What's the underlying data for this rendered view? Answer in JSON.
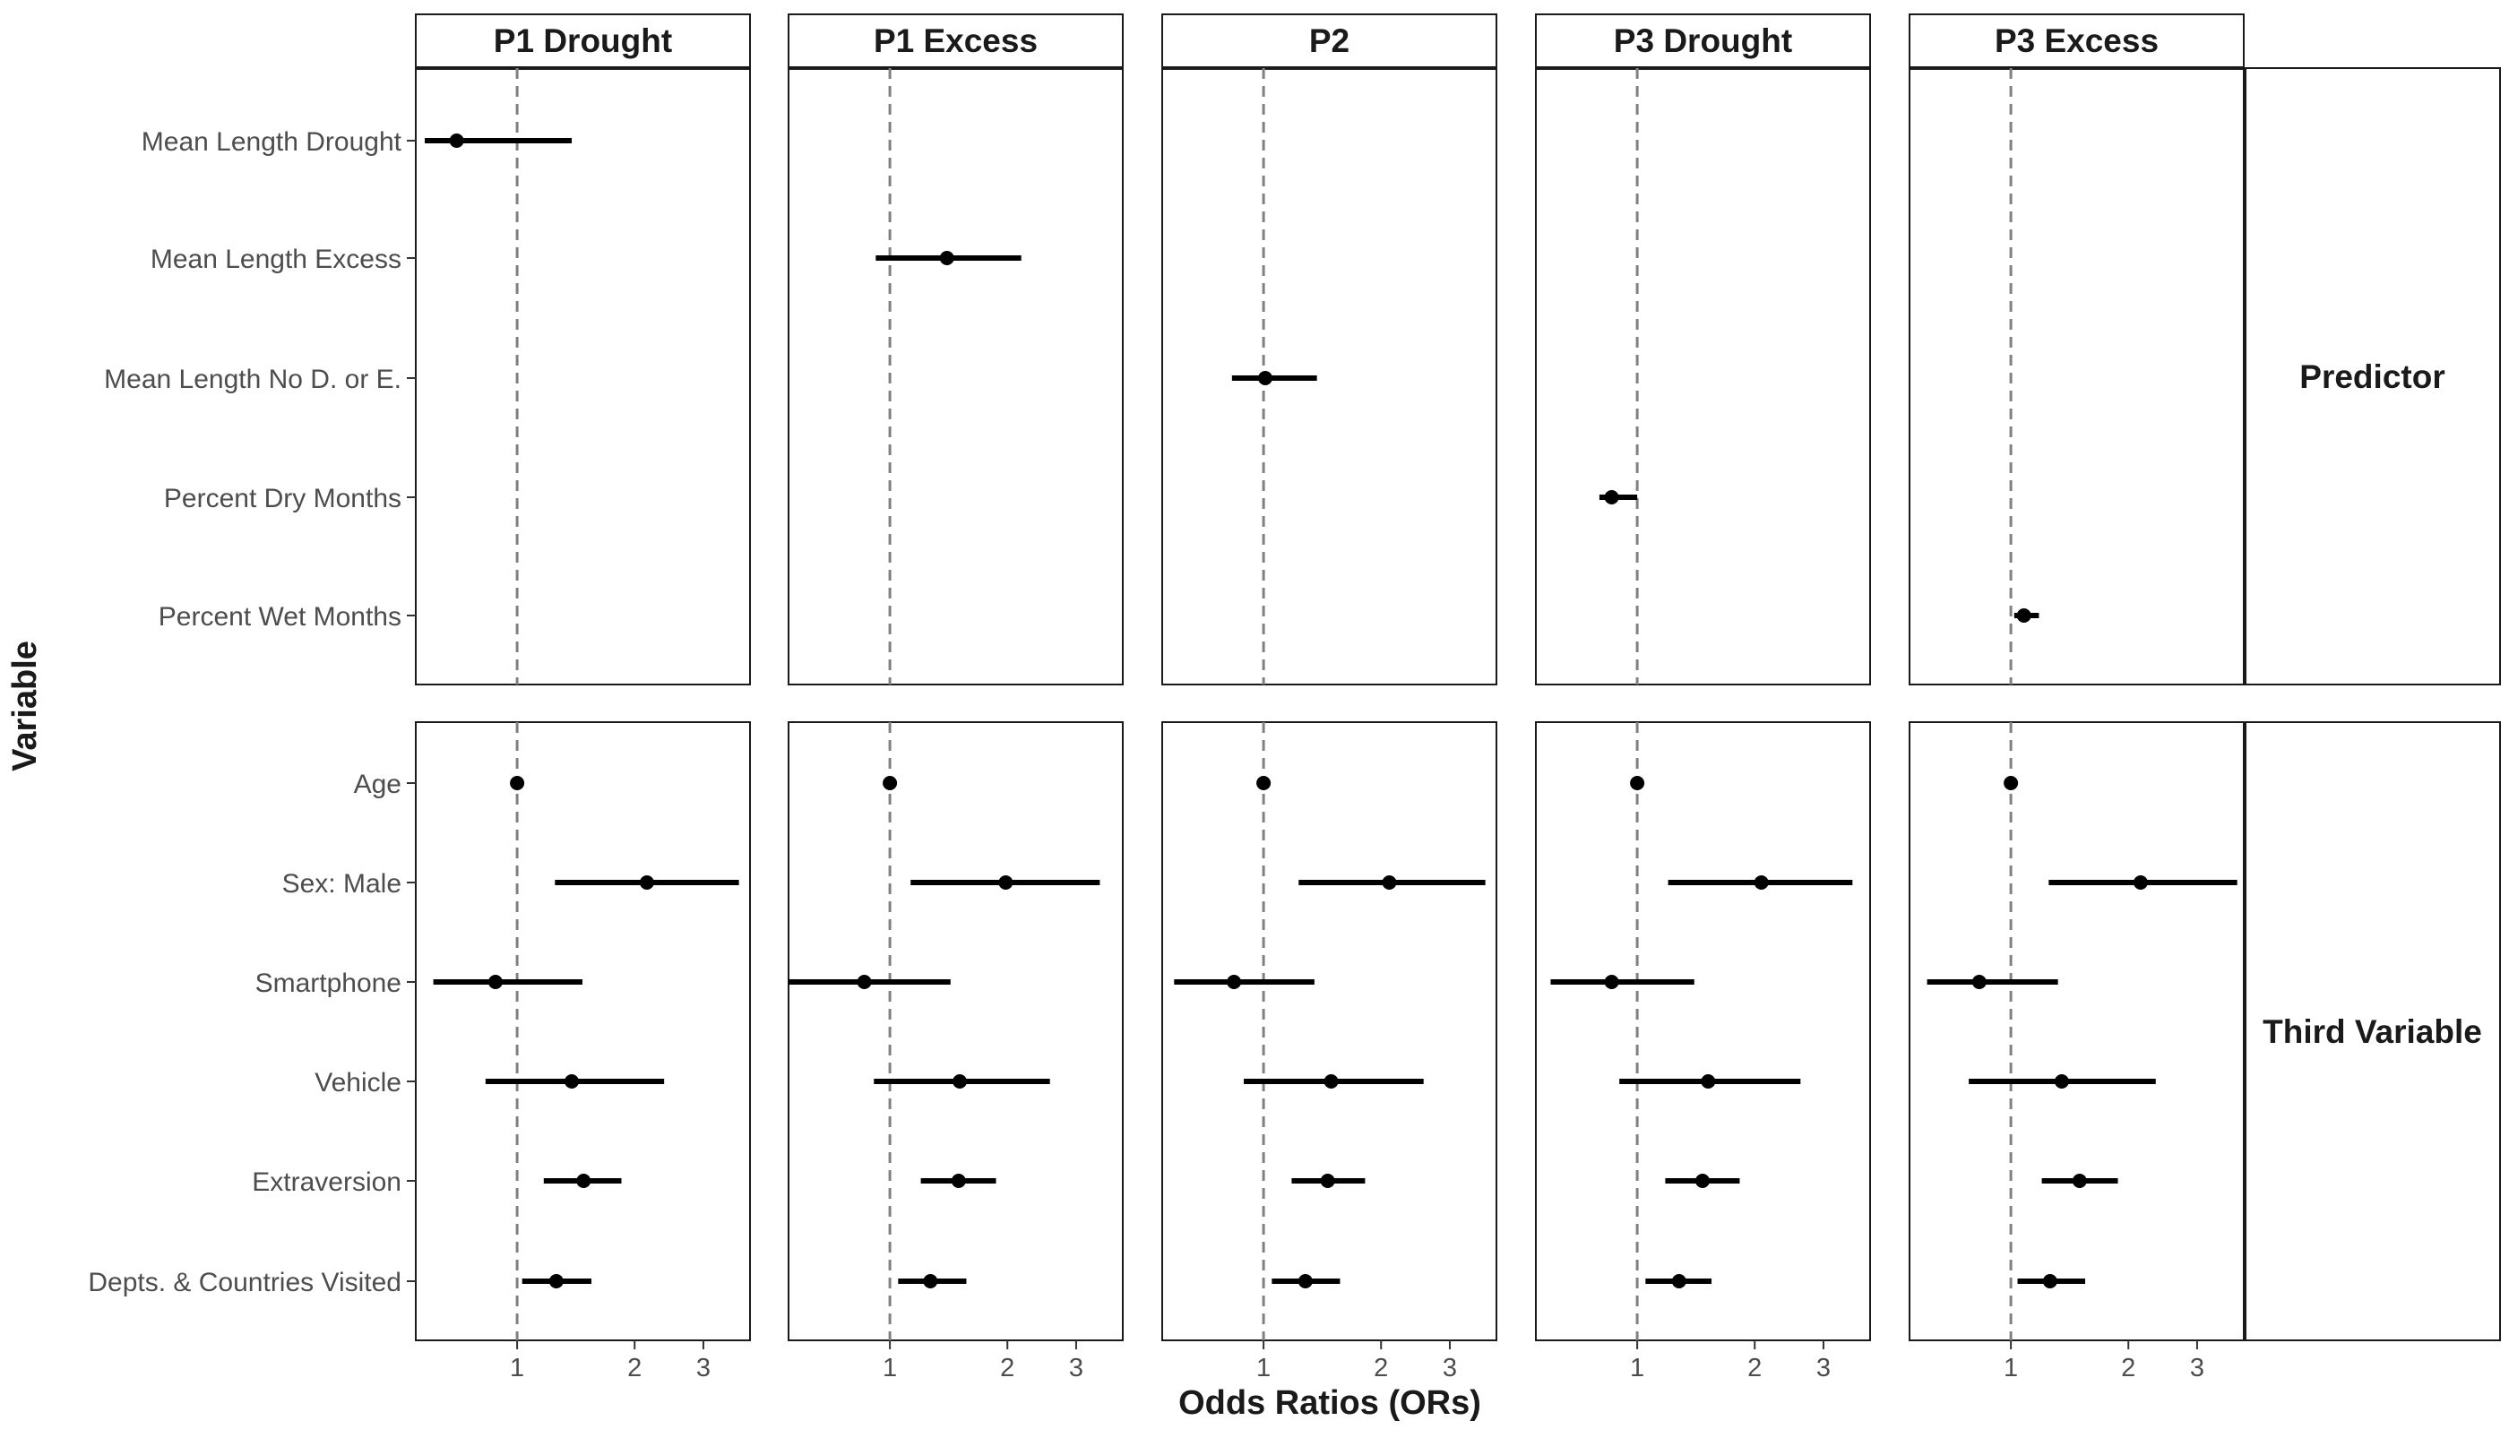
{
  "chart_data": {
    "type": "forest",
    "xlabel": "Odds Ratios (ORs)",
    "ylabel": "Variable",
    "x_scale": "log",
    "xlim": [
      0.55,
      3.95
    ],
    "x_ticks": [
      1,
      2,
      3
    ],
    "reference_line": 1,
    "grid": false,
    "facet_columns": [
      "P1 Drought",
      "P1 Excess",
      "P2",
      "P3 Drought",
      "P3 Excess"
    ],
    "facet_rows": [
      {
        "name": "Predictor",
        "variables": [
          "Mean Length Drought",
          "Mean Length Excess",
          "Mean Length No D. or E.",
          "Percent Dry Months",
          "Percent Wet Months"
        ]
      },
      {
        "name": "Third Variable",
        "variables": [
          "Age",
          "Sex: Male",
          "Smartphone",
          "Vehicle",
          "Extraversion",
          "Depts. & Countries Visited"
        ]
      }
    ],
    "estimates": {
      "P1 Drought": {
        "Mean Length Drought": [
          0.7,
          0.58,
          1.38
        ],
        "Age": [
          1.0,
          0.99,
          1.01
        ],
        "Sex: Male": [
          2.15,
          1.25,
          3.7
        ],
        "Smartphone": [
          0.88,
          0.61,
          1.47
        ],
        "Vehicle": [
          1.38,
          0.83,
          2.38
        ],
        "Extraversion": [
          1.48,
          1.17,
          1.85
        ],
        "Depts. & Countries Visited": [
          1.26,
          1.03,
          1.55
        ]
      },
      "P1 Excess": {
        "Mean Length Excess": [
          1.4,
          0.92,
          2.17
        ],
        "Age": [
          1.0,
          0.99,
          1.01
        ],
        "Sex: Male": [
          1.98,
          1.13,
          3.45
        ],
        "Smartphone": [
          0.86,
          0.55,
          1.43
        ],
        "Vehicle": [
          1.51,
          0.91,
          2.57
        ],
        "Extraversion": [
          1.5,
          1.2,
          1.87
        ],
        "Depts. & Countries Visited": [
          1.27,
          1.05,
          1.57
        ]
      },
      "P2": {
        "Mean Length No D. or E.": [
          1.01,
          0.83,
          1.37
        ],
        "Age": [
          1.0,
          0.99,
          1.01
        ],
        "Sex: Male": [
          2.1,
          1.23,
          3.7
        ],
        "Smartphone": [
          0.84,
          0.59,
          1.35
        ],
        "Vehicle": [
          1.49,
          0.89,
          2.57
        ],
        "Extraversion": [
          1.46,
          1.18,
          1.82
        ],
        "Depts. & Countries Visited": [
          1.28,
          1.05,
          1.57
        ]
      },
      "P3 Drought": {
        "Percent Dry Months": [
          0.86,
          0.8,
          1.0
        ],
        "Age": [
          1.0,
          0.99,
          1.01
        ],
        "Sex: Male": [
          2.08,
          1.2,
          3.56
        ],
        "Smartphone": [
          0.86,
          0.6,
          1.4
        ],
        "Vehicle": [
          1.52,
          0.9,
          2.62
        ],
        "Extraversion": [
          1.47,
          1.18,
          1.83
        ],
        "Depts. & Countries Visited": [
          1.28,
          1.05,
          1.55
        ]
      },
      "P3 Excess": {
        "Percent Wet Months": [
          1.08,
          1.02,
          1.18
        ],
        "Age": [
          1.0,
          0.99,
          1.01
        ],
        "Sex: Male": [
          2.15,
          1.25,
          3.8
        ],
        "Smartphone": [
          0.83,
          0.61,
          1.32
        ],
        "Vehicle": [
          1.35,
          0.78,
          2.35
        ],
        "Extraversion": [
          1.5,
          1.2,
          1.88
        ],
        "Depts. & Countries Visited": [
          1.26,
          1.04,
          1.55
        ]
      }
    },
    "colors": {
      "point": "#000000",
      "reference_line": "#808080",
      "panel_border": "#1a1a1a",
      "label_text": "#4d4d4d",
      "title_text": "#1a1a1a"
    }
  }
}
